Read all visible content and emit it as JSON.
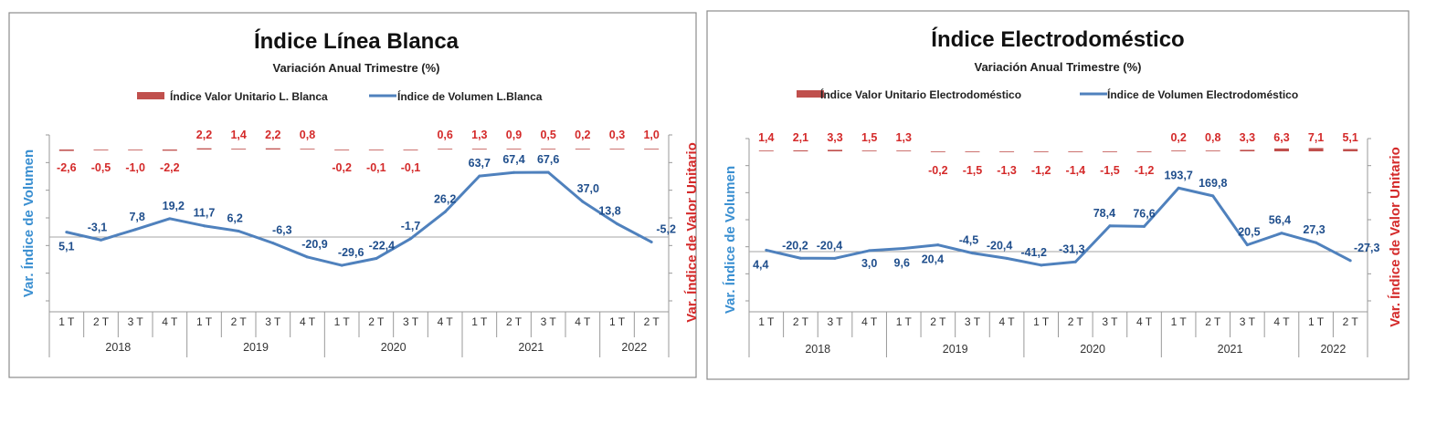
{
  "colors": {
    "volume_line": "#4f81bd",
    "unit_value_bar": "#c0504d",
    "volume_axis_label": "#3a8fd1",
    "unit_value_axis_label": "#d42a2a",
    "volume_data_label": "#1f4e8c"
  },
  "chart_data": [
    {
      "type": "bar+line",
      "title": "Índice Línea Blanca",
      "subtitle": "Variación Anual Trimestre  (%)",
      "ylabel_left": "Var. Índice de Volumen",
      "ylabel_right": "Var. Índice de Valor Unitario",
      "legend_placement": "top",
      "quarters": [
        "1 T",
        "2 T",
        "3 T",
        "4 T",
        "1 T",
        "2 T",
        "3 T",
        "4 T",
        "1 T",
        "2 T",
        "3 T",
        "4 T",
        "1 T",
        "2 T",
        "3 T",
        "4 T",
        "1 T",
        "2 T"
      ],
      "years": [
        {
          "label": "2018",
          "span": 4
        },
        {
          "label": "2019",
          "span": 4
        },
        {
          "label": "2020",
          "span": 4
        },
        {
          "label": "2021",
          "span": 4
        },
        {
          "label": "2022",
          "span": 2
        }
      ],
      "series": [
        {
          "name": "Índice Valor Unitario L. Blanca",
          "kind": "bar",
          "values": [
            -2.6,
            -0.5,
            -1.0,
            -2.2,
            2.2,
            1.4,
            2.2,
            0.8,
            -0.2,
            -0.1,
            -0.1,
            0.6,
            1.3,
            0.9,
            0.5,
            0.2,
            0.3,
            1.0
          ],
          "labels": [
            "-2,6",
            "-0,5",
            "-1,0",
            "-2,2",
            "2,2",
            "1,4",
            "2,2",
            "0,8",
            "-0,2",
            "-0,1",
            "-0,1",
            "0,6",
            "1,3",
            "0,9",
            "0,5",
            "0,2",
            "0,3",
            "1,0"
          ]
        },
        {
          "name": "Índice de Volumen L.Blanca",
          "kind": "line",
          "values": [
            5.1,
            -3.1,
            7.8,
            19.2,
            11.7,
            6.2,
            -6.3,
            -20.9,
            -29.6,
            -22.4,
            -1.7,
            26.2,
            63.7,
            67.4,
            67.6,
            37.0,
            13.8,
            -5.2
          ],
          "labels": [
            "5,1",
            "-3,1",
            "7,8",
            "19,2",
            "11,7",
            "6,2",
            "-6,3",
            "-20,9",
            "-29,6",
            "-22,4",
            "-1,7",
            "26,2",
            "63,7",
            "67,4",
            "67,6",
            "37,0",
            "13,8",
            "-5,2"
          ]
        }
      ]
    },
    {
      "type": "bar+line",
      "title": "Índice Electrodoméstico",
      "subtitle": "Variación Anual Trimestre  (%)",
      "ylabel_left": "Var. Índice de Volumen",
      "ylabel_right": "Var. Índice de Valor Unitario",
      "legend_placement": "top",
      "quarters": [
        "1 T",
        "2 T",
        "3 T",
        "4 T",
        "1 T",
        "2 T",
        "3 T",
        "4 T",
        "1 T",
        "2 T",
        "3 T",
        "4 T",
        "1 T",
        "2 T",
        "3 T",
        "4 T",
        "1 T",
        "2 T"
      ],
      "years": [
        {
          "label": "2018",
          "span": 4
        },
        {
          "label": "2019",
          "span": 4
        },
        {
          "label": "2020",
          "span": 4
        },
        {
          "label": "2021",
          "span": 4
        },
        {
          "label": "2022",
          "span": 2
        }
      ],
      "series": [
        {
          "name": "Índice Valor Unitario Electrodoméstico",
          "kind": "bar",
          "values": [
            1.4,
            2.1,
            3.3,
            1.5,
            1.3,
            -0.2,
            -1.5,
            -1.3,
            -1.2,
            -1.4,
            -1.5,
            -1.2,
            0.2,
            0.8,
            3.3,
            6.3,
            7.1,
            5.1
          ],
          "labels": [
            "1,4",
            "2,1",
            "3,3",
            "1,5",
            "1,3",
            "-0,2",
            "-1,5",
            "-1,3",
            "-1,2",
            "-1,4",
            "-1,5",
            "-1,2",
            "0,2",
            "0,8",
            "3,3",
            "6,3",
            "7,1",
            "5,1"
          ]
        },
        {
          "name": "Índice de Volumen Electrodoméstico",
          "kind": "line",
          "values": [
            4.4,
            -20.2,
            -20.4,
            3.0,
            9.6,
            20.4,
            -4.5,
            -20.4,
            -41.2,
            -31.3,
            78.4,
            76.6,
            193.7,
            169.8,
            20.5,
            56.4,
            27.3,
            -27.3
          ],
          "labels": [
            "4,4",
            "-20,2",
            "-20,4",
            "3,0",
            "9,6",
            "20,4",
            "-4,5",
            "-20,4",
            "-41,2",
            "-31,3",
            "78,4",
            "76,6",
            "193,7",
            "169,8",
            "20,5",
            "56,4",
            "27,3",
            "-27,3"
          ]
        }
      ]
    }
  ]
}
